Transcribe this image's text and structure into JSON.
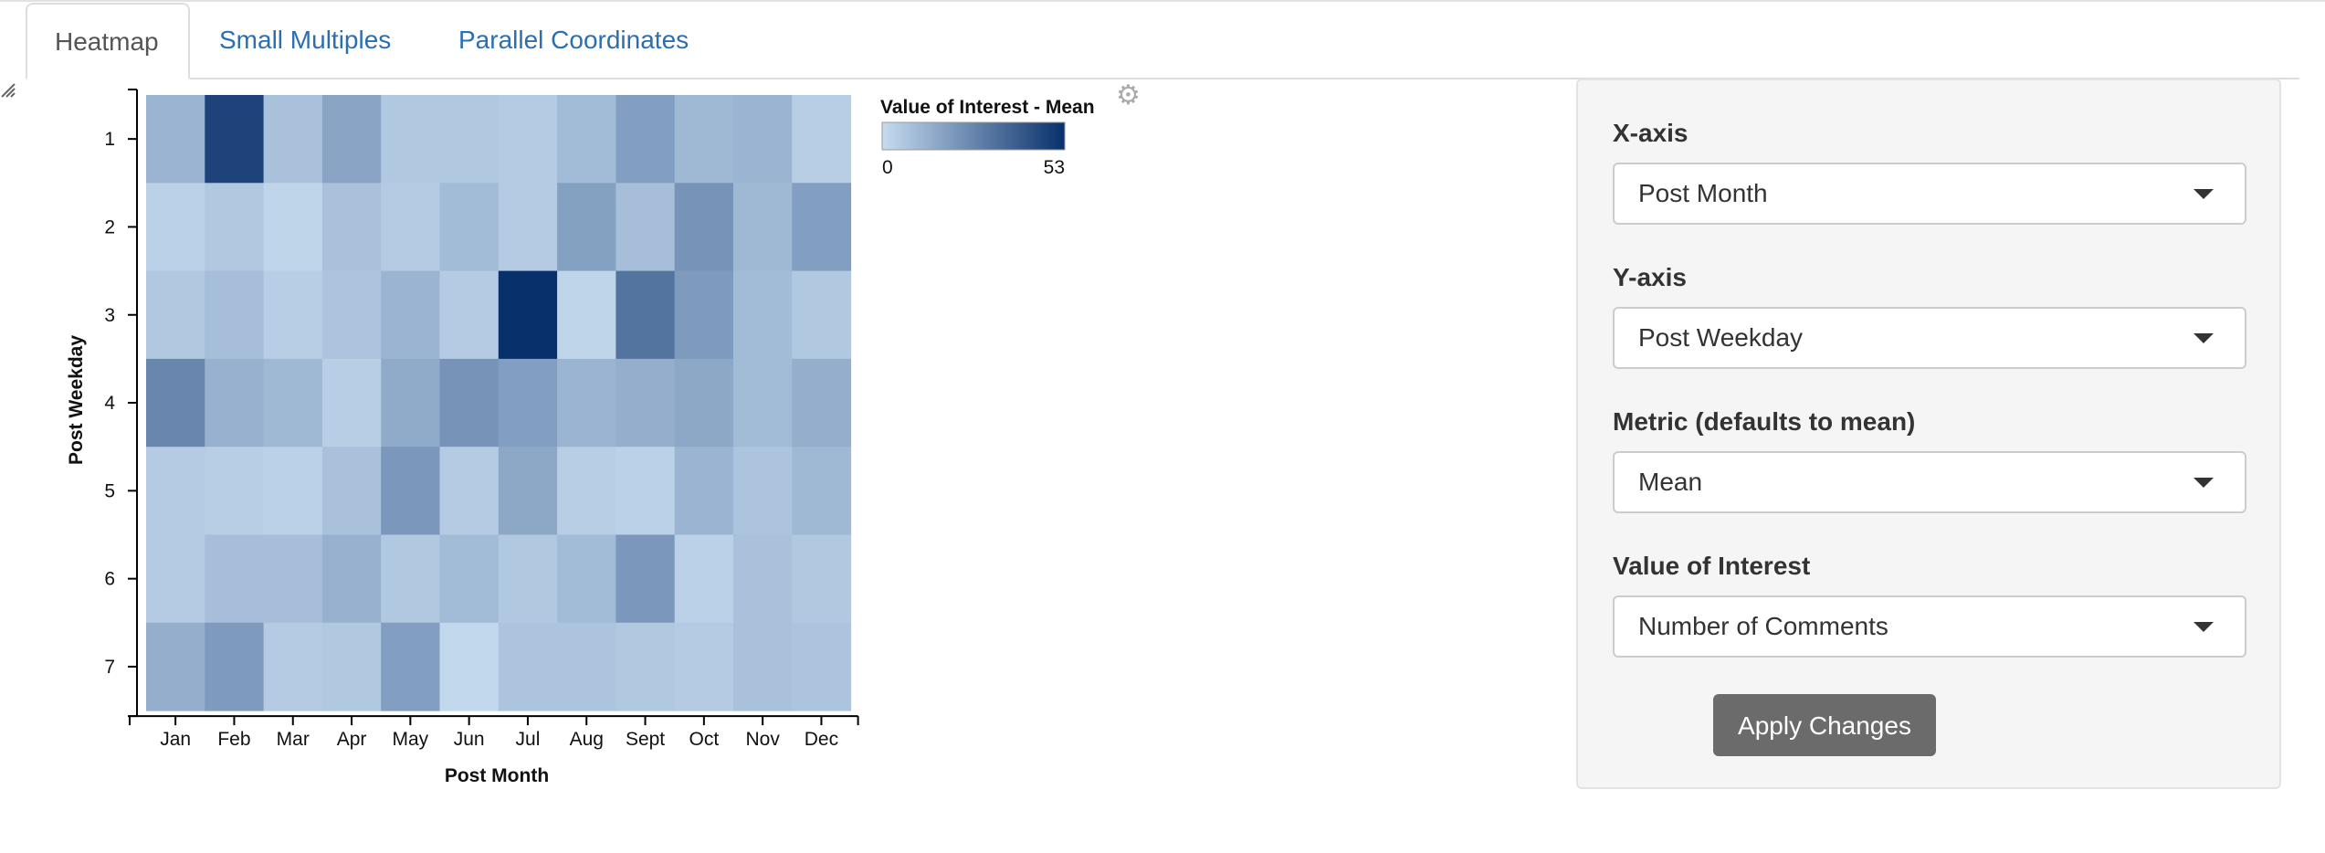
{
  "tabs": [
    {
      "label": "Heatmap",
      "active": true
    },
    {
      "label": "Small Multiples",
      "active": false
    },
    {
      "label": "Parallel Coordinates",
      "active": false
    }
  ],
  "icons": {
    "settings": "gear-icon",
    "resize": "resize-handle-icon",
    "dropdown": "caret-down-icon"
  },
  "panel": {
    "x_axis": {
      "label": "X-axis",
      "value": "Post Month"
    },
    "y_axis": {
      "label": "Y-axis",
      "value": "Post Weekday"
    },
    "metric": {
      "label": "Metric (defaults to mean)",
      "value": "Mean"
    },
    "value_of_interest": {
      "label": "Value of Interest",
      "value": "Number of Comments"
    },
    "apply_label": "Apply Changes"
  },
  "colors": {
    "low": "#c6dbef",
    "high": "#08306b",
    "tab_link": "#2c6fb0",
    "button": "#6b6b6b"
  },
  "chart_data": {
    "type": "heatmap",
    "xlabel": "Post Month",
    "ylabel": "Post Weekday",
    "x": [
      "Jan",
      "Feb",
      "Mar",
      "Apr",
      "May",
      "Jun",
      "Jul",
      "Aug",
      "Sept",
      "Oct",
      "Nov",
      "Dec"
    ],
    "y": [
      "1",
      "2",
      "3",
      "4",
      "5",
      "6",
      "7"
    ],
    "legend": {
      "title": "Value of Interest - Mean",
      "min_label": "0",
      "max_label": "53",
      "min": 0,
      "max": 53
    },
    "values": [
      [
        12,
        47,
        8,
        17,
        6,
        6,
        5,
        10,
        19,
        11,
        12,
        4
      ],
      [
        3,
        6,
        2,
        8,
        5,
        10,
        5,
        18,
        9,
        22,
        11,
        19
      ],
      [
        6,
        9,
        4,
        7,
        12,
        5,
        53,
        2,
        32,
        20,
        10,
        6
      ],
      [
        26,
        13,
        11,
        4,
        15,
        22,
        19,
        12,
        14,
        16,
        10,
        14
      ],
      [
        5,
        4,
        3,
        8,
        21,
        5,
        16,
        4,
        3,
        12,
        7,
        11
      ],
      [
        5,
        9,
        9,
        13,
        6,
        10,
        6,
        10,
        21,
        3,
        8,
        6
      ],
      [
        14,
        20,
        5,
        6,
        19,
        1,
        7,
        7,
        6,
        5,
        8,
        7
      ]
    ]
  }
}
